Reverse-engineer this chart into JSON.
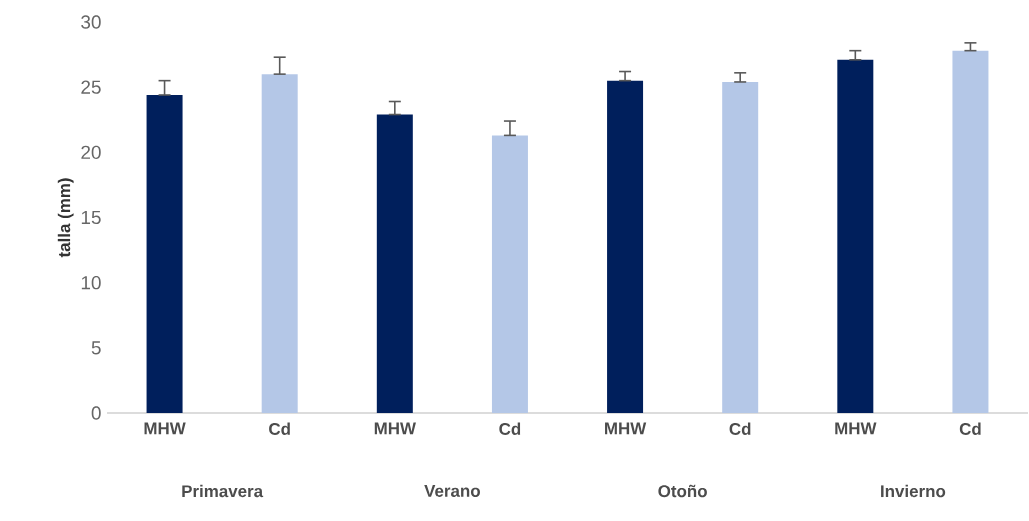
{
  "chart_data": {
    "type": "bar",
    "ylabel": "talla (mm)",
    "categories": [
      "MHW",
      "Cd",
      "MHW",
      "Cd",
      "MHW",
      "Cd",
      "MHW",
      "Cd"
    ],
    "values": [
      24.4,
      26.0,
      22.9,
      21.3,
      25.5,
      25.4,
      27.1,
      27.8
    ],
    "colors": [
      "#001f5c",
      "#b4c7e7",
      "#001f5c",
      "#b4c7e7",
      "#001f5c",
      "#b4c7e7",
      "#001f5c",
      "#b4c7e7"
    ],
    "errors": [
      [
        24.4,
        25.5
      ],
      [
        26.0,
        27.3
      ],
      [
        22.9,
        23.9
      ],
      [
        21.3,
        22.4
      ],
      [
        25.5,
        26.2
      ],
      [
        25.4,
        26.1
      ],
      [
        27.1,
        27.8
      ],
      [
        27.8,
        28.4
      ]
    ],
    "ylim": [
      0,
      30
    ],
    "yticks": [
      0,
      5,
      10,
      15,
      20,
      25,
      30
    ],
    "annotations": [
      "Primavera",
      "Verano",
      "Otoño",
      "Invierno"
    ]
  }
}
